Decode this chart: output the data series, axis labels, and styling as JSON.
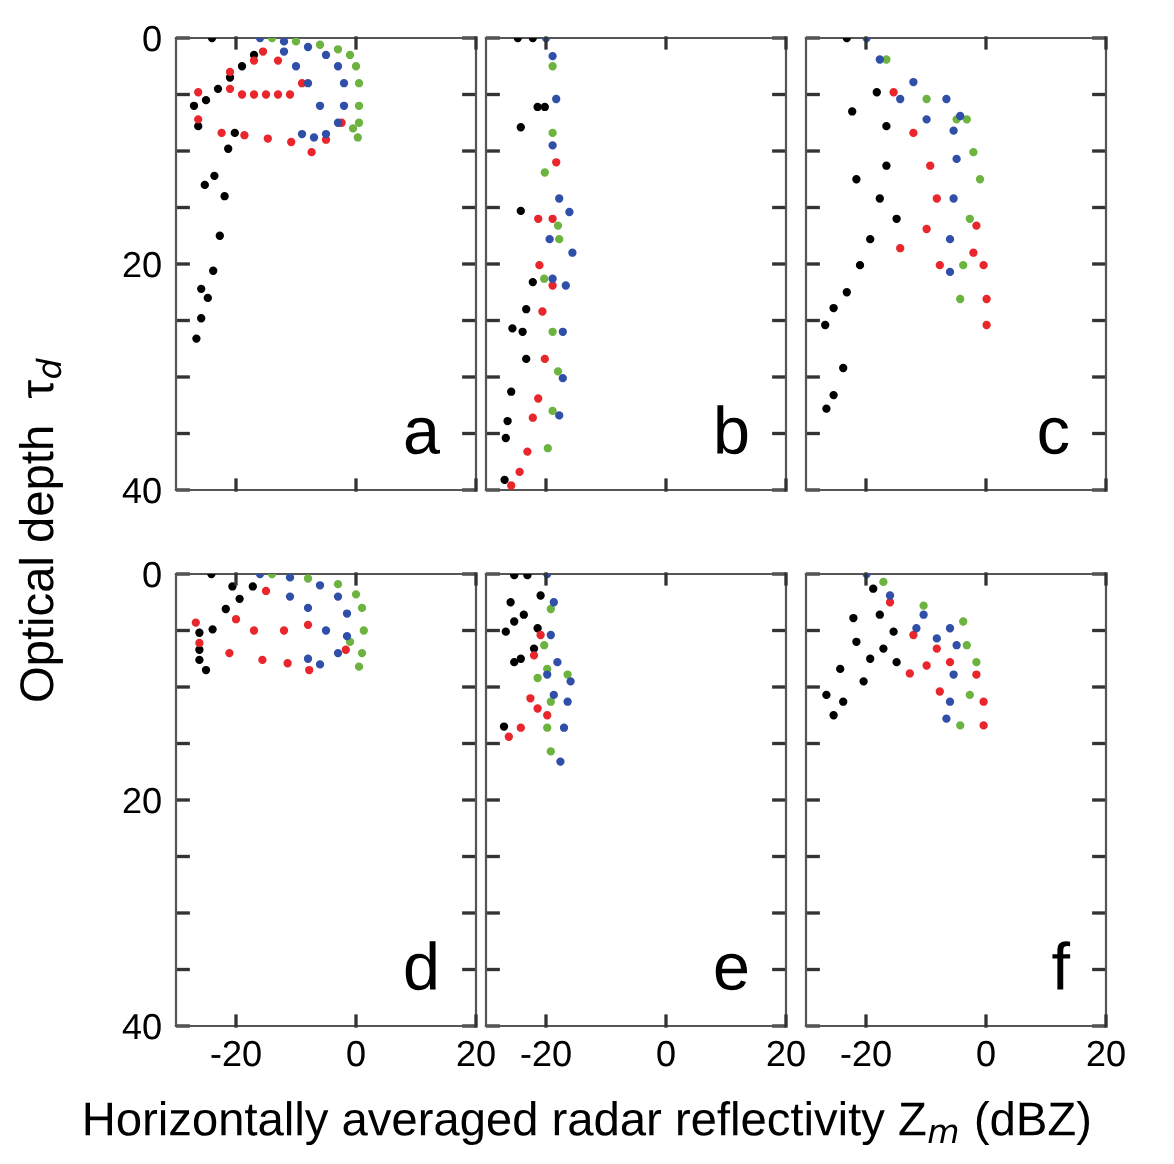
{
  "chart_data": [
    {
      "type": "scatter",
      "ylabel": "Optical depth  τ$_{d}$",
      "annotations": [
        "a"
      ],
      "xlim": [
        -30,
        20
      ],
      "ylim": [
        40,
        0
      ],
      "marker": "circle",
      "grid": false,
      "tick_labels": "y",
      "xticks": [
        -20,
        0,
        20
      ],
      "yticks": [
        0,
        {
          "value": 5,
          "label": null
        },
        {
          "value": 10,
          "label": null
        },
        {
          "value": 15,
          "label": null
        },
        20,
        {
          "value": 25,
          "label": null
        },
        {
          "value": 30,
          "label": null
        },
        {
          "value": 35,
          "label": null
        },
        40
      ],
      "series": [
        {
          "color": "#000000",
          "x": [
            -24,
            -27,
            -25,
            -23,
            -21,
            -19,
            -17,
            -26.3,
            -20.2,
            -21.3,
            -23.6,
            -25.2,
            -21.9,
            -22.7,
            -23.8,
            -25.8,
            -24.7,
            -25.8,
            -26.6
          ],
          "values": [
            0,
            6,
            5.5,
            4.5,
            3.5,
            2.5,
            1.5,
            7.8,
            8.4,
            9.8,
            12.2,
            13,
            14,
            17.5,
            20.6,
            22.2,
            23,
            24.8,
            26.6
          ]
        },
        {
          "color": "#e8262b",
          "x": [
            -15.5,
            -21,
            -26.3,
            -21,
            -26.3,
            -19,
            -22.4,
            -17,
            -18.6,
            -15,
            -14.7,
            -13,
            -10.8,
            -11,
            -7.4,
            -9,
            -2.4,
            -5,
            -17,
            -13
          ],
          "values": [
            1.2,
            3,
            4.8,
            4.5,
            7.2,
            5,
            8.4,
            5,
            8.6,
            5,
            8.9,
            5,
            9.2,
            5,
            10.1,
            4,
            7.5,
            9,
            2,
            2
          ]
        },
        {
          "color": "#6cb33f",
          "x": [
            -14,
            -10,
            -6,
            -3,
            -1,
            0,
            0.5,
            0.5,
            0.5,
            0.3,
            -0.5
          ],
          "values": [
            0,
            0.3,
            0.6,
            1,
            1.5,
            2.5,
            4,
            6,
            7.5,
            8.8,
            8
          ]
        },
        {
          "color": "#2f4fa8",
          "x": [
            -16,
            -12,
            -8,
            -5,
            -3,
            -2,
            -2,
            -3,
            -5,
            -7,
            -9,
            -6,
            -8,
            -10,
            -12
          ],
          "values": [
            0,
            0.3,
            0.8,
            1.5,
            2.5,
            4,
            6,
            7.5,
            8.5,
            8.8,
            8.5,
            6,
            4,
            2.5,
            1.2
          ]
        }
      ]
    },
    {
      "type": "scatter",
      "annotations": [
        "b"
      ],
      "xlim": [
        -30,
        20
      ],
      "ylim": [
        40,
        0
      ],
      "marker": "circle",
      "grid": false,
      "tick_labels": false,
      "xticks": [
        -20,
        0,
        20
      ],
      "yticks": [
        0,
        {
          "value": 5,
          "label": null
        },
        {
          "value": 10,
          "label": null
        },
        {
          "value": 15,
          "label": null
        },
        20,
        {
          "value": 25,
          "label": null
        },
        {
          "value": 30,
          "label": null
        },
        {
          "value": 35,
          "label": null
        },
        40
      ],
      "series": [
        {
          "color": "#000000",
          "x": [
            -24.7,
            -22.2,
            -24.2,
            -21.4,
            -20.2,
            -24.2,
            -22.2,
            -23.3,
            -25.6,
            -23.9,
            -23.3,
            -25.8,
            -26.4,
            -26.7,
            -26.9
          ],
          "values": [
            0,
            0,
            7.9,
            6.1,
            6.1,
            15.3,
            21.6,
            24,
            25.7,
            26,
            28.4,
            31.3,
            33.9,
            35.4,
            39.1
          ]
        },
        {
          "color": "#e8262b",
          "x": [
            -18.3,
            -21.3,
            -21.1,
            -20.6,
            -20.2,
            -21.3,
            -22.2,
            -23.1,
            -24.4,
            -25.8,
            -18.9,
            -18.9
          ],
          "values": [
            11,
            16,
            20.1,
            24.2,
            28.4,
            31.9,
            33.6,
            36.6,
            38.4,
            39.6,
            16,
            21.9
          ]
        },
        {
          "color": "#6cb33f",
          "x": [
            -18.9,
            -18.9,
            -20.2,
            -18,
            -20.3,
            -18.9,
            -18,
            -18.9,
            -19.7,
            -17.8
          ],
          "values": [
            2.5,
            8.4,
            11.9,
            16.6,
            21.3,
            26,
            29.5,
            33,
            36.3,
            17.8
          ]
        },
        {
          "color": "#2f4fa8",
          "x": [
            -20,
            -18.9,
            -18.3,
            -18.9,
            -17.8,
            -16.1,
            -15.6,
            -16.7,
            -17.2,
            -17.2,
            -17.8,
            -19.4,
            -18.9
          ],
          "values": [
            0,
            1.6,
            5.4,
            9.5,
            14.2,
            15.4,
            19,
            21.9,
            26,
            30.1,
            33.4,
            17.8,
            21.3
          ]
        }
      ]
    },
    {
      "type": "scatter",
      "annotations": [
        "c"
      ],
      "xlim": [
        -30,
        20
      ],
      "ylim": [
        40,
        0
      ],
      "marker": "circle",
      "grid": false,
      "tick_labels": false,
      "xticks": [
        -20,
        0,
        20
      ],
      "yticks": [
        0,
        {
          "value": 5,
          "label": null
        },
        {
          "value": 10,
          "label": null
        },
        {
          "value": 15,
          "label": null
        },
        20,
        {
          "value": 25,
          "label": null
        },
        {
          "value": 30,
          "label": null
        },
        {
          "value": 35,
          "label": null
        },
        40
      ],
      "series": [
        {
          "color": "#000000",
          "x": [
            -26.6,
            -25.4,
            -23.8,
            -26.8,
            -25.4,
            -23.2,
            -21,
            -19.3,
            -21.6,
            -17.7,
            -16.6,
            -16.6,
            -18.2,
            -22.3,
            -14.9,
            -23.2
          ],
          "values": [
            32.8,
            31.6,
            29.2,
            25.4,
            23.9,
            22.5,
            20.1,
            17.8,
            12.5,
            14.2,
            11.3,
            7.8,
            4.8,
            6.5,
            16,
            0
          ]
        },
        {
          "color": "#e8262b",
          "x": [
            -15.4,
            -12.1,
            -9.3,
            -8.2,
            -9.9,
            -14.3,
            -7.7,
            -1.6,
            -0.4,
            0.1,
            0.1,
            -2.1
          ],
          "values": [
            4.8,
            8.4,
            11.3,
            14.2,
            16.9,
            18.6,
            20.1,
            16.6,
            20.1,
            23.1,
            25.4,
            19
          ]
        },
        {
          "color": "#6cb33f",
          "x": [
            -16.6,
            -9.9,
            -3.2,
            -2.1,
            -1,
            -2.7,
            -3.8,
            -4.3,
            -4.9
          ],
          "values": [
            1.9,
            5.4,
            7.2,
            10.1,
            12.5,
            16,
            20.1,
            23.1,
            7.2
          ]
        },
        {
          "color": "#2f4fa8",
          "x": [
            -19.9,
            -17.7,
            -12.1,
            -6.6,
            -4.3,
            -4.9,
            -5.4,
            -6,
            -6,
            -9.9,
            -14.3,
            -5.4
          ],
          "values": [
            0,
            1.9,
            3.9,
            5.4,
            6.9,
            10.7,
            14.2,
            17.8,
            20.7,
            7.2,
            5.4,
            8.2
          ]
        }
      ]
    },
    {
      "type": "scatter",
      "annotations": [
        "d"
      ],
      "xlim": [
        -30,
        20
      ],
      "ylim": [
        40,
        0
      ],
      "marker": "circle",
      "grid": false,
      "xticks": [
        -20,
        0,
        20
      ],
      "yticks": [
        0,
        {
          "value": 5,
          "label": null
        },
        {
          "value": 10,
          "label": null
        },
        {
          "value": 15,
          "label": null
        },
        20,
        {
          "value": 25,
          "label": null
        },
        {
          "value": 30,
          "label": null
        },
        {
          "value": 35,
          "label": null
        },
        40
      ],
      "series": [
        {
          "color": "#000000",
          "x": [
            -24.1,
            -20.6,
            -21.7,
            -23.9,
            -26.1,
            -26.1,
            -25,
            -26.1,
            -19.4,
            -17.2
          ],
          "values": [
            0,
            1.1,
            3.1,
            4.9,
            5.2,
            7.6,
            8.5,
            6.7,
            2.2,
            1.1
          ]
        },
        {
          "color": "#e8262b",
          "x": [
            -15,
            -26.7,
            -26.1,
            -21.1,
            -15.6,
            -11.4,
            -7.8,
            -1.7,
            -20,
            -17,
            -12,
            -8
          ],
          "values": [
            1.5,
            4.3,
            6.1,
            7,
            7.6,
            7.9,
            8.5,
            6.7,
            4,
            5,
            5,
            4.5
          ]
        },
        {
          "color": "#6cb33f",
          "x": [
            -14,
            -8,
            -3,
            0,
            1,
            1.3,
            1,
            0.5,
            -1
          ],
          "values": [
            0,
            0.4,
            0.9,
            1.8,
            3,
            5,
            7,
            8.2,
            6
          ]
        },
        {
          "color": "#2f4fa8",
          "x": [
            -16,
            -11,
            -6,
            -3,
            -1.5,
            -1.5,
            -3,
            -6,
            -8,
            -5,
            -8,
            -11
          ],
          "values": [
            0,
            0.3,
            1,
            2,
            3.5,
            5.5,
            7,
            8,
            7.5,
            5,
            3,
            2
          ]
        }
      ]
    },
    {
      "type": "scatter",
      "xlabel": "Horizontally averaged radar reflectivity Z$_{m}$ (dBZ)",
      "annotations": [
        "e"
      ],
      "xlim": [
        -30,
        20
      ],
      "ylim": [
        40,
        0
      ],
      "marker": "circle",
      "grid": false,
      "tick_labels": "x",
      "xticks": [
        -20,
        0,
        20
      ],
      "yticks": [
        0,
        {
          "value": 5,
          "label": null
        },
        {
          "value": 10,
          "label": null
        },
        {
          "value": 15,
          "label": null
        },
        20,
        {
          "value": 25,
          "label": null
        },
        {
          "value": 30,
          "label": null
        },
        {
          "value": 35,
          "label": null
        },
        40
      ],
      "series": [
        {
          "color": "#000000",
          "x": [
            -25.3,
            -23.1,
            -25.9,
            -26.7,
            -25.3,
            -24.2,
            -22,
            -21.4,
            -23.7,
            -27,
            -25.3,
            -20.9
          ],
          "values": [
            0.1,
            0.1,
            2.5,
            5.1,
            4.2,
            7.5,
            6.6,
            4.8,
            3.6,
            13.5,
            7.8,
            1.9
          ]
        },
        {
          "color": "#e8262b",
          "x": [
            -22,
            -22.6,
            -21.4,
            -24.2,
            -26.2,
            -19.8,
            -20.9
          ],
          "values": [
            7.2,
            11,
            11.9,
            13.6,
            14.4,
            12.5,
            5.4
          ]
        },
        {
          "color": "#6cb33f",
          "x": [
            -19.2,
            -20.3,
            -21.4,
            -19.8,
            -19.2,
            -19.8,
            -19.2,
            -16.4
          ],
          "values": [
            3.1,
            6.3,
            9.2,
            8.4,
            11.3,
            13.6,
            15.7,
            8.9
          ]
        },
        {
          "color": "#2f4fa8",
          "x": [
            -19.8,
            -18.7,
            -19.2,
            -18.1,
            -15.9,
            -16.4,
            -17,
            -17.6,
            -19.8,
            -18.7
          ],
          "values": [
            0,
            2.5,
            5.4,
            7.8,
            9.5,
            11.3,
            13.6,
            16.6,
            8.9,
            10.7
          ]
        }
      ]
    },
    {
      "type": "scatter",
      "annotations": [
        "f"
      ],
      "xlim": [
        -30,
        20
      ],
      "ylim": [
        40,
        0
      ],
      "marker": "circle",
      "grid": false,
      "tick_labels": "x",
      "xticks": [
        -20,
        0,
        20
      ],
      "yticks": [
        0,
        {
          "value": 5,
          "label": null
        },
        {
          "value": 10,
          "label": null
        },
        {
          "value": 15,
          "label": null
        },
        20,
        {
          "value": 25,
          "label": null
        },
        {
          "value": 30,
          "label": null
        },
        {
          "value": 35,
          "label": null
        },
        40
      ],
      "series": [
        {
          "color": "#000000",
          "x": [
            -18.8,
            -22.1,
            -21.6,
            -24.3,
            -26.6,
            -25.4,
            -23.8,
            -20.4,
            -17.1,
            -15.4,
            -14.9,
            -17.7,
            -19.3
          ],
          "values": [
            1.3,
            3.9,
            6,
            8.4,
            10.7,
            12.5,
            11.3,
            9.5,
            6.6,
            5.1,
            7.8,
            3.6,
            7.5
          ]
        },
        {
          "color": "#e8262b",
          "x": [
            -16,
            -12.1,
            -9.9,
            -12.7,
            -6,
            -8.2,
            -1.6,
            -0.4,
            -0.4,
            -7.7
          ],
          "values": [
            2.5,
            5.4,
            8.1,
            8.8,
            7.8,
            6.6,
            8.9,
            11.3,
            13.4,
            10.4
          ]
        },
        {
          "color": "#6cb33f",
          "x": [
            -17.1,
            -10.4,
            -3.8,
            -1.6,
            -2.7,
            -4.3,
            -3.2
          ],
          "values": [
            0.7,
            2.8,
            4.2,
            7.8,
            10.7,
            13.4,
            6.3
          ]
        },
        {
          "color": "#2f4fa8",
          "x": [
            -19.9,
            -16,
            -10.4,
            -6,
            -4.9,
            -5.4,
            -6,
            -6.6,
            -11.6,
            -8.2
          ],
          "values": [
            0,
            1.9,
            3.6,
            4.8,
            6.3,
            8.9,
            11.3,
            12.8,
            4.8,
            5.7
          ]
        }
      ]
    }
  ]
}
